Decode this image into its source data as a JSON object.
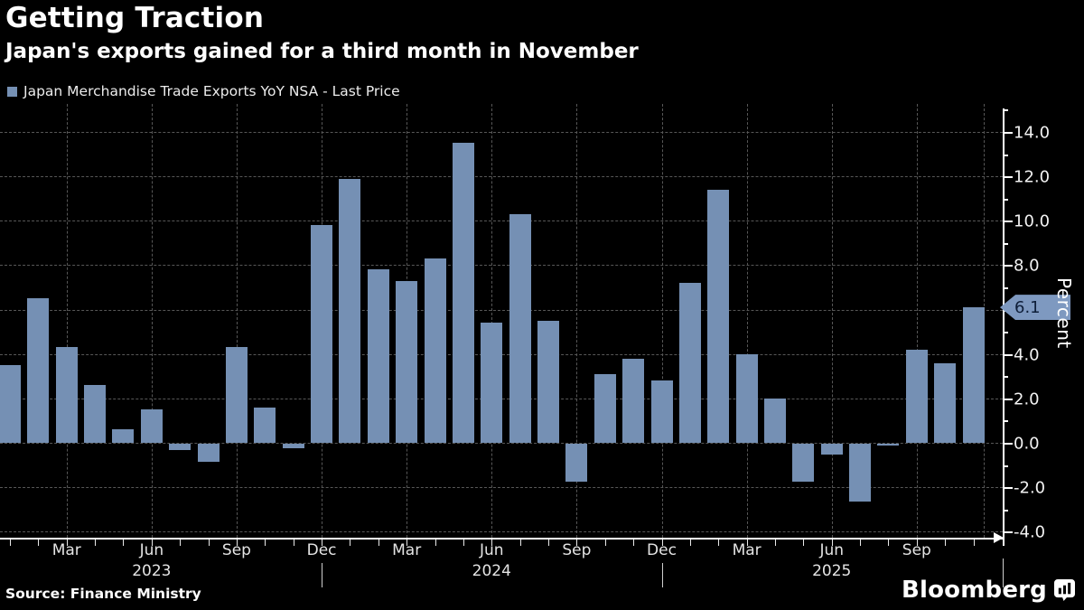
{
  "header": {
    "title": "Getting Traction",
    "subtitle": "Japan's exports gained for a third month in November"
  },
  "legend": {
    "label": "Japan Merchandise Trade Exports YoY NSA - Last Price"
  },
  "chart_data": {
    "type": "bar",
    "title": "Getting Traction",
    "subtitle": "Japan's exports gained for a third month in November",
    "series_name": "Japan Merchandise Trade Exports YoY NSA - Last Price",
    "unit": "Percent",
    "grid": true,
    "legend_position": "top-left",
    "x": [
      "Jan 2023",
      "Feb 2023",
      "Mar 2023",
      "Apr 2023",
      "May 2023",
      "Jun 2023",
      "Jul 2023",
      "Aug 2023",
      "Sep 2023",
      "Oct 2023",
      "Nov 2023",
      "Dec 2023",
      "Jan 2024",
      "Feb 2024",
      "Mar 2024",
      "Apr 2024",
      "May 2024",
      "Jun 2024",
      "Jul 2024",
      "Aug 2024",
      "Sep 2024",
      "Oct 2024",
      "Nov 2024",
      "Dec 2024",
      "Jan 2025",
      "Feb 2025",
      "Mar 2025",
      "Apr 2025",
      "May 2025",
      "Jun 2025",
      "Jul 2025",
      "Aug 2025",
      "Sep 2025",
      "Oct 2025",
      "Nov 2025"
    ],
    "values": [
      3.5,
      6.5,
      4.3,
      2.6,
      0.6,
      1.5,
      -0.3,
      -0.8,
      4.3,
      1.6,
      -0.2,
      9.8,
      11.9,
      7.8,
      7.3,
      8.3,
      13.5,
      5.4,
      10.3,
      5.5,
      -1.7,
      3.1,
      3.8,
      2.8,
      7.2,
      11.4,
      4.0,
      2.0,
      -1.7,
      -0.5,
      -2.6,
      -0.1,
      4.2,
      3.6,
      6.1
    ],
    "ylim": [
      -4.6,
      15.2
    ],
    "y_axis": {
      "label": "Percent",
      "gridline_values": [
        14,
        12,
        10,
        8,
        6,
        4,
        2,
        0,
        -2,
        -4
      ],
      "labeled_ticks": [
        {
          "value": 14,
          "label": "14.0"
        },
        {
          "value": 12,
          "label": "12.0"
        },
        {
          "value": 10,
          "label": "10.0"
        },
        {
          "value": 8,
          "label": "8.0"
        },
        {
          "value": 4,
          "label": "4.0"
        },
        {
          "value": 2,
          "label": "2.0"
        },
        {
          "value": 0,
          "label": "0.0"
        },
        {
          "value": -2,
          "label": "-2.0"
        },
        {
          "value": -4,
          "label": "-4.0"
        }
      ]
    },
    "x_axis": {
      "labeled_months": [
        "Mar",
        "Jun",
        "Sep",
        "Dec"
      ],
      "year_labels": [
        "2023",
        "2024",
        "2025"
      ]
    },
    "last_price": {
      "value": 6.1,
      "label": "6.1"
    }
  },
  "footer": {
    "source": "Source: Finance Ministry",
    "brand": "Bloomberg"
  },
  "colors": {
    "background": "#000000",
    "bar": "#7590b4",
    "grid": "#575757",
    "axis": "#ffffff",
    "tick_text": "#e4e4e4",
    "badge_fill": "#7e99c0",
    "badge_text": "#0e1e38"
  }
}
